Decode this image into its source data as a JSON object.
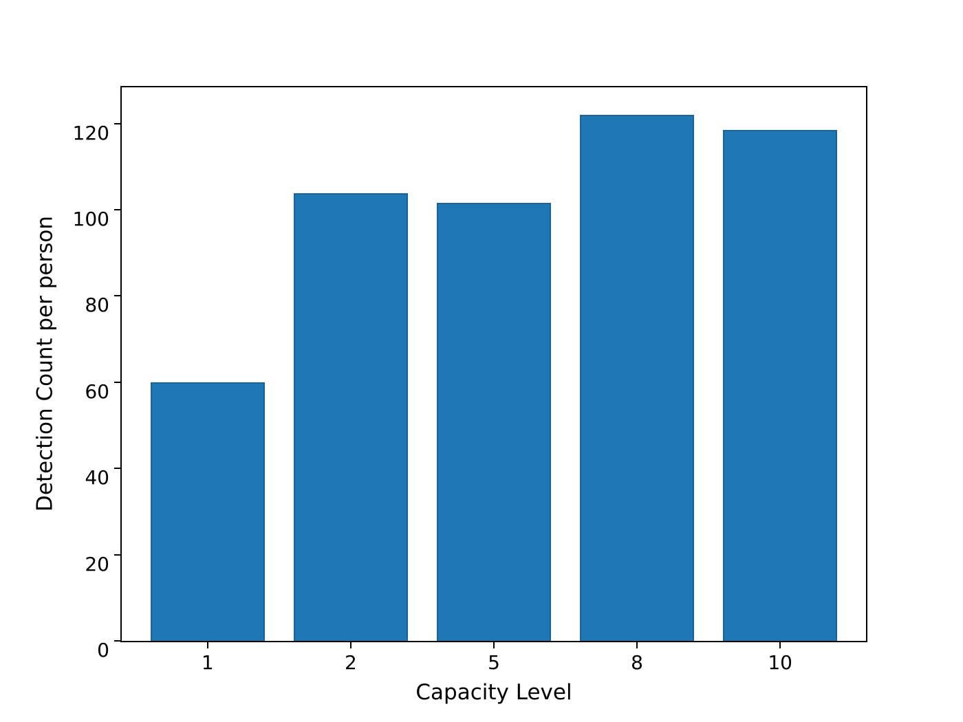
{
  "chart_data": {
    "type": "bar",
    "categories": [
      "1",
      "2",
      "5",
      "8",
      "10"
    ],
    "values": [
      60,
      103.8,
      101.6,
      122,
      118.5
    ],
    "title": "",
    "xlabel": "Capacity Level",
    "ylabel": "Detection Count per person",
    "ylim": [
      0,
      128.4
    ],
    "yticks": [
      0,
      20,
      40,
      60,
      80,
      100,
      120
    ],
    "bar_width_frac": 0.8,
    "grid": false,
    "legend": null,
    "colors": {
      "bar_fill": "#1f77b4",
      "bar_edge": "#17639c",
      "spine": "#000000",
      "text": "#000000",
      "background": "#ffffff"
    }
  }
}
